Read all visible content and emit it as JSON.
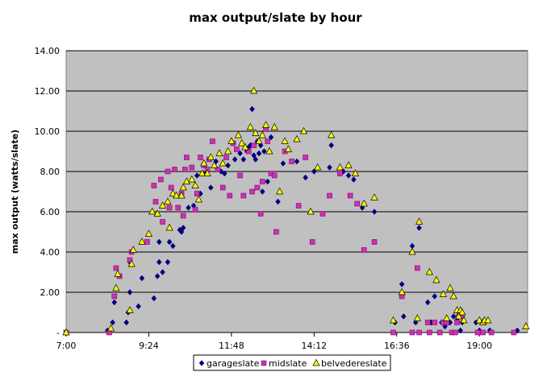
{
  "chart_data": {
    "type": "scatter",
    "title": "max output/slate by hour",
    "xlabel": "",
    "ylabel": "max output (watts/slate)",
    "x_ticks": [
      "7:00",
      "9:24",
      "11:48",
      "14:12",
      "16:36",
      "19:00"
    ],
    "y_ticks": [
      "-",
      "2.00",
      "4.00",
      "6.00",
      "8.00",
      "10.00",
      "12.00",
      "14.00"
    ],
    "xlim_hours": [
      7.0,
      20.4
    ],
    "ylim": [
      0,
      14
    ],
    "grid": "horizontal",
    "legend_position": "bottom",
    "plot_background": "#c0c0c0",
    "series": [
      {
        "name": "garageslate",
        "color": "#000080",
        "marker": "diamond",
        "points": [
          [
            7.0,
            0
          ],
          [
            8.2,
            0.1
          ],
          [
            8.35,
            0.5
          ],
          [
            8.4,
            1.5
          ],
          [
            8.75,
            0.5
          ],
          [
            8.8,
            1.0
          ],
          [
            8.85,
            2.0
          ],
          [
            8.85,
            3.5
          ],
          [
            8.9,
            4.0
          ],
          [
            9.1,
            1.3
          ],
          [
            9.2,
            2.7
          ],
          [
            9.55,
            1.7
          ],
          [
            9.65,
            2.8
          ],
          [
            9.7,
            3.5
          ],
          [
            9.7,
            4.5
          ],
          [
            9.8,
            3.0
          ],
          [
            9.95,
            3.5
          ],
          [
            10.0,
            4.5
          ],
          [
            10.1,
            4.3
          ],
          [
            10.25,
            6.2
          ],
          [
            10.3,
            5.1
          ],
          [
            10.35,
            5.0
          ],
          [
            10.4,
            5.2
          ],
          [
            10.55,
            6.2
          ],
          [
            10.7,
            6.3
          ],
          [
            10.8,
            7.8
          ],
          [
            10.9,
            6.9
          ],
          [
            11.0,
            7.9
          ],
          [
            11.1,
            8.0
          ],
          [
            11.2,
            7.2
          ],
          [
            11.35,
            8.5
          ],
          [
            11.5,
            8.0
          ],
          [
            11.6,
            7.9
          ],
          [
            11.7,
            8.3
          ],
          [
            11.9,
            8.6
          ],
          [
            12.05,
            8.9
          ],
          [
            12.15,
            8.6
          ],
          [
            12.25,
            9.0
          ],
          [
            12.3,
            9.2
          ],
          [
            12.35,
            9.3
          ],
          [
            12.4,
            11.1
          ],
          [
            12.45,
            8.8
          ],
          [
            12.5,
            8.6
          ],
          [
            12.55,
            9.5
          ],
          [
            12.6,
            8.9
          ],
          [
            12.65,
            9.3
          ],
          [
            12.7,
            7.0
          ],
          [
            12.75,
            9.0
          ],
          [
            12.85,
            7.5
          ],
          [
            12.95,
            9.7
          ],
          [
            13.15,
            6.5
          ],
          [
            13.3,
            8.4
          ],
          [
            13.7,
            8.5
          ],
          [
            13.95,
            7.7
          ],
          [
            14.2,
            8.0
          ],
          [
            14.65,
            8.2
          ],
          [
            14.7,
            9.3
          ],
          [
            15.05,
            8.0
          ],
          [
            15.2,
            7.8
          ],
          [
            15.35,
            7.6
          ],
          [
            15.6,
            6.2
          ],
          [
            15.95,
            6.0
          ],
          [
            16.55,
            0.5
          ],
          [
            16.75,
            2.4
          ],
          [
            16.8,
            0.8
          ],
          [
            17.05,
            4.3
          ],
          [
            17.15,
            0.5
          ],
          [
            17.25,
            5.2
          ],
          [
            17.5,
            1.5
          ],
          [
            17.6,
            0.5
          ],
          [
            17.7,
            1.8
          ],
          [
            17.9,
            0.5
          ],
          [
            18.0,
            0.3
          ],
          [
            18.1,
            0.5
          ],
          [
            18.15,
            0.5
          ],
          [
            18.25,
            0.8
          ],
          [
            18.35,
            0.6
          ],
          [
            18.45,
            0.1
          ],
          [
            18.5,
            0.5
          ],
          [
            18.9,
            0.5
          ],
          [
            19.0,
            0.1
          ],
          [
            19.15,
            0.5
          ],
          [
            19.3,
            0.1
          ],
          [
            20.1,
            0.1
          ]
        ]
      },
      {
        "name": "midslate",
        "color": "#cc33aa",
        "marker": "square",
        "points": [
          [
            7.0,
            0
          ],
          [
            8.25,
            0
          ],
          [
            8.4,
            1.8
          ],
          [
            8.45,
            3.2
          ],
          [
            8.55,
            2.8
          ],
          [
            8.85,
            3.6
          ],
          [
            8.9,
            4.0
          ],
          [
            9.35,
            4.5
          ],
          [
            9.55,
            7.3
          ],
          [
            9.6,
            6.5
          ],
          [
            9.75,
            7.6
          ],
          [
            9.8,
            5.5
          ],
          [
            9.95,
            8.0
          ],
          [
            10.0,
            6.2
          ],
          [
            10.05,
            7.2
          ],
          [
            10.15,
            8.1
          ],
          [
            10.25,
            6.2
          ],
          [
            10.35,
            6.9
          ],
          [
            10.4,
            5.8
          ],
          [
            10.45,
            8.1
          ],
          [
            10.5,
            8.7
          ],
          [
            10.65,
            8.2
          ],
          [
            10.75,
            6.1
          ],
          [
            10.8,
            6.9
          ],
          [
            10.9,
            8.7
          ],
          [
            11.0,
            8.3
          ],
          [
            11.1,
            8.1
          ],
          [
            11.15,
            8.6
          ],
          [
            11.25,
            9.5
          ],
          [
            11.4,
            8.1
          ],
          [
            11.55,
            7.2
          ],
          [
            11.65,
            8.7
          ],
          [
            11.75,
            6.8
          ],
          [
            11.85,
            9.4
          ],
          [
            11.95,
            9.1
          ],
          [
            12.05,
            7.8
          ],
          [
            12.15,
            6.8
          ],
          [
            12.3,
            9.0
          ],
          [
            12.4,
            7.0
          ],
          [
            12.45,
            9.3
          ],
          [
            12.55,
            7.2
          ],
          [
            12.65,
            5.9
          ],
          [
            12.7,
            7.5
          ],
          [
            12.8,
            10.1
          ],
          [
            12.85,
            9.5
          ],
          [
            12.95,
            7.9
          ],
          [
            13.05,
            7.8
          ],
          [
            13.1,
            5.0
          ],
          [
            13.35,
            9.0
          ],
          [
            13.55,
            8.5
          ],
          [
            13.75,
            6.3
          ],
          [
            13.95,
            8.7
          ],
          [
            14.15,
            4.5
          ],
          [
            14.45,
            5.9
          ],
          [
            14.65,
            6.8
          ],
          [
            14.95,
            7.9
          ],
          [
            15.25,
            6.8
          ],
          [
            15.45,
            6.4
          ],
          [
            15.65,
            4.1
          ],
          [
            15.95,
            4.5
          ],
          [
            16.5,
            0
          ],
          [
            16.75,
            1.8
          ],
          [
            17.05,
            0
          ],
          [
            17.2,
            3.2
          ],
          [
            17.25,
            0
          ],
          [
            17.5,
            0.5
          ],
          [
            17.55,
            0
          ],
          [
            17.7,
            0.5
          ],
          [
            17.85,
            0
          ],
          [
            17.95,
            0.5
          ],
          [
            18.05,
            0.5
          ],
          [
            18.2,
            0
          ],
          [
            18.3,
            0
          ],
          [
            18.35,
            0.5
          ],
          [
            18.4,
            0.8
          ],
          [
            18.5,
            0.8
          ],
          [
            18.95,
            0
          ],
          [
            19.1,
            0
          ],
          [
            19.35,
            0
          ],
          [
            20.0,
            0
          ]
        ]
      },
      {
        "name": "belvedereslate",
        "color": "#ffff00",
        "marker": "triangle",
        "points": [
          [
            7.0,
            0
          ],
          [
            8.3,
            0.2
          ],
          [
            8.45,
            2.2
          ],
          [
            8.5,
            2.9
          ],
          [
            8.85,
            1.1
          ],
          [
            8.9,
            3.4
          ],
          [
            8.95,
            4.1
          ],
          [
            9.2,
            4.5
          ],
          [
            9.4,
            4.9
          ],
          [
            9.5,
            6.0
          ],
          [
            9.65,
            5.9
          ],
          [
            9.8,
            6.3
          ],
          [
            9.95,
            6.5
          ],
          [
            10.0,
            5.2
          ],
          [
            10.1,
            6.9
          ],
          [
            10.2,
            6.8
          ],
          [
            10.35,
            6.8
          ],
          [
            10.4,
            7.2
          ],
          [
            10.5,
            7.5
          ],
          [
            10.65,
            7.6
          ],
          [
            10.75,
            7.3
          ],
          [
            10.85,
            6.6
          ],
          [
            10.95,
            7.9
          ],
          [
            11.0,
            8.4
          ],
          [
            11.1,
            7.9
          ],
          [
            11.2,
            8.7
          ],
          [
            11.3,
            8.3
          ],
          [
            11.45,
            8.9
          ],
          [
            11.55,
            8.4
          ],
          [
            11.7,
            9.0
          ],
          [
            11.8,
            9.5
          ],
          [
            12.0,
            9.8
          ],
          [
            12.1,
            9.4
          ],
          [
            12.2,
            9.2
          ],
          [
            12.35,
            10.2
          ],
          [
            12.45,
            12.0
          ],
          [
            12.5,
            9.9
          ],
          [
            12.6,
            9.5
          ],
          [
            12.7,
            9.8
          ],
          [
            12.8,
            10.3
          ],
          [
            12.9,
            9.0
          ],
          [
            13.05,
            10.2
          ],
          [
            13.2,
            7.0
          ],
          [
            13.35,
            9.5
          ],
          [
            13.45,
            9.1
          ],
          [
            13.7,
            9.6
          ],
          [
            13.9,
            10.0
          ],
          [
            14.1,
            6.0
          ],
          [
            14.3,
            8.2
          ],
          [
            14.7,
            9.8
          ],
          [
            14.95,
            8.2
          ],
          [
            15.2,
            8.3
          ],
          [
            15.4,
            7.9
          ],
          [
            15.65,
            6.4
          ],
          [
            15.95,
            6.7
          ],
          [
            16.5,
            0.6
          ],
          [
            16.75,
            2.0
          ],
          [
            17.05,
            4.0
          ],
          [
            17.2,
            0.7
          ],
          [
            17.25,
            5.5
          ],
          [
            17.55,
            3.0
          ],
          [
            17.75,
            2.6
          ],
          [
            17.95,
            1.9
          ],
          [
            18.05,
            0.7
          ],
          [
            18.15,
            2.2
          ],
          [
            18.25,
            1.8
          ],
          [
            18.35,
            1.1
          ],
          [
            18.4,
            0.8
          ],
          [
            18.45,
            1.1
          ],
          [
            18.5,
            1.0
          ],
          [
            18.55,
            0.6
          ],
          [
            19.0,
            0.6
          ],
          [
            19.1,
            0.5
          ],
          [
            19.15,
            0.6
          ],
          [
            19.25,
            0.6
          ],
          [
            20.35,
            0.3
          ]
        ]
      }
    ]
  }
}
